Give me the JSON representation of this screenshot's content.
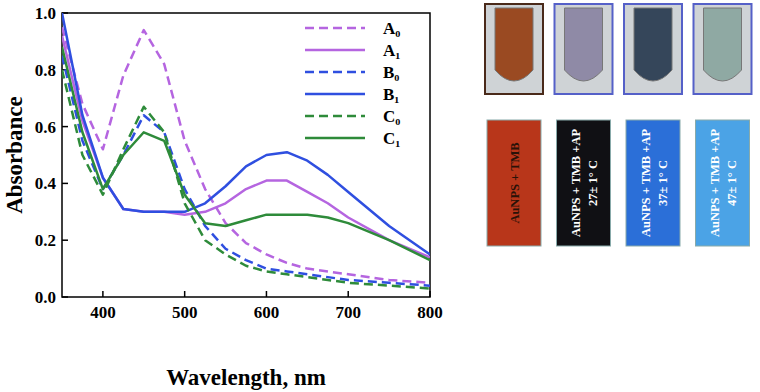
{
  "chart_data": {
    "type": "line",
    "x_label": "Wavelength, nm",
    "y_label": "Absorbance",
    "x": [
      350,
      375,
      400,
      425,
      450,
      475,
      500,
      525,
      550,
      575,
      600,
      625,
      650,
      675,
      700,
      750,
      800
    ],
    "series": [
      {
        "name": "A₀",
        "color": "#b565e0",
        "line_style": "dashed",
        "values": [
          0.95,
          0.68,
          0.52,
          0.78,
          0.94,
          0.82,
          0.55,
          0.38,
          0.26,
          0.19,
          0.15,
          0.12,
          0.1,
          0.09,
          0.08,
          0.06,
          0.05
        ]
      },
      {
        "name": "A₁",
        "color": "#b565e0",
        "line_style": "solid",
        "values": [
          0.92,
          0.62,
          0.42,
          0.31,
          0.3,
          0.3,
          0.29,
          0.3,
          0.33,
          0.38,
          0.41,
          0.41,
          0.37,
          0.33,
          0.28,
          0.2,
          0.14
        ]
      },
      {
        "name": "B₀",
        "color": "#2f4fe0",
        "line_style": "dashed",
        "values": [
          0.85,
          0.55,
          0.38,
          0.5,
          0.64,
          0.58,
          0.38,
          0.25,
          0.17,
          0.13,
          0.1,
          0.09,
          0.08,
          0.07,
          0.06,
          0.05,
          0.04
        ]
      },
      {
        "name": "B₁",
        "color": "#2f4fe0",
        "line_style": "solid",
        "values": [
          1.0,
          0.64,
          0.42,
          0.31,
          0.3,
          0.3,
          0.3,
          0.33,
          0.39,
          0.46,
          0.5,
          0.51,
          0.48,
          0.43,
          0.37,
          0.25,
          0.15
        ]
      },
      {
        "name": "C₀",
        "color": "#2e8b3a",
        "line_style": "dashed",
        "values": [
          0.8,
          0.5,
          0.36,
          0.52,
          0.67,
          0.58,
          0.33,
          0.2,
          0.15,
          0.11,
          0.09,
          0.08,
          0.07,
          0.06,
          0.05,
          0.04,
          0.03
        ]
      },
      {
        "name": "C₁",
        "color": "#2e8b3a",
        "line_style": "solid",
        "values": [
          0.88,
          0.58,
          0.38,
          0.5,
          0.58,
          0.55,
          0.36,
          0.26,
          0.25,
          0.27,
          0.29,
          0.29,
          0.29,
          0.28,
          0.26,
          0.2,
          0.13
        ]
      }
    ],
    "xlim": [
      350,
      800
    ],
    "xticks": [
      400,
      500,
      600,
      700,
      800
    ],
    "ylim": [
      0,
      1.0
    ],
    "yticks": [
      {
        "value": 0,
        "label": "0.0"
      },
      0.2,
      0.4,
      0.6,
      0.8,
      {
        "value": 1.0,
        "label": "1.0"
      }
    ],
    "legend": "top-right",
    "grid": false
  },
  "tubes": [
    {
      "label": [
        "AuNPS + TMB"
      ],
      "color": "#9a4a22",
      "label_color": "#b8361a"
    },
    {
      "label": [
        "AuNPS + TMB +AP",
        "27± 1° C"
      ],
      "color": "#8f8aa6",
      "label_color": "#101014"
    },
    {
      "label": [
        "AuNPS + TMB +AP",
        "37± 1° C"
      ],
      "color": "#35465a",
      "label_color": "#2b6fd8"
    },
    {
      "label": [
        "AuNPS + TMB +AP",
        "47± 1° C"
      ],
      "color": "#8fa9a3",
      "label_color": "#4ba3e6"
    }
  ]
}
